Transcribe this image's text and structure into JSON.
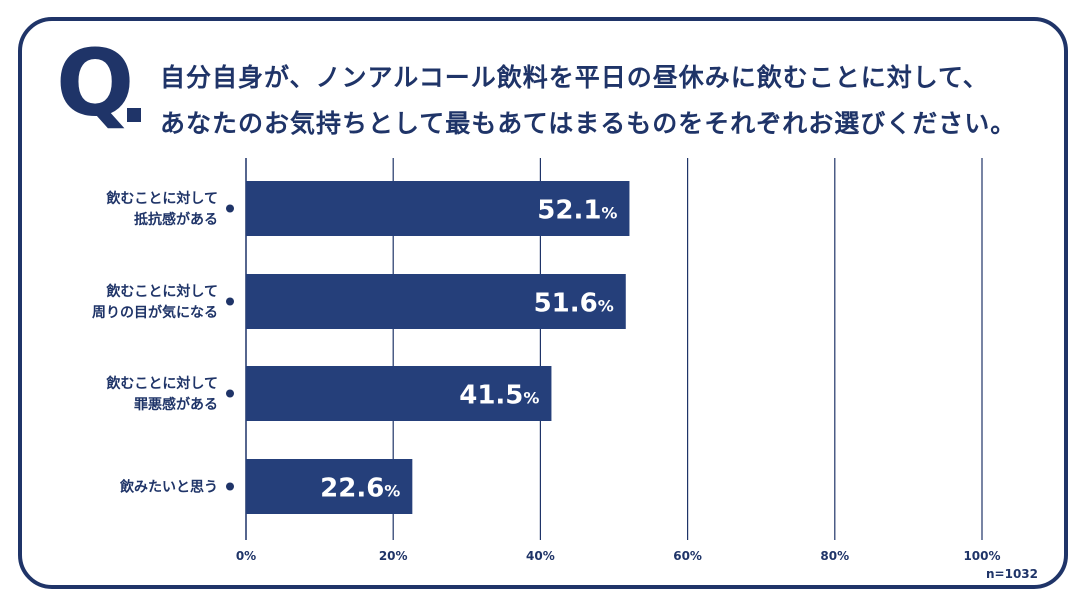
{
  "question": {
    "mark": "Q",
    "line1": "自分自身が、ノンアルコール飲料を平日の昼休みに飲むことに対して、",
    "line2": "あなたのお気持ちとして最もあてはまるものをそれぞれお選びください。"
  },
  "sample_note": "n=1032",
  "colors": {
    "bar": "#253f7a",
    "frame": "#1f3468",
    "grid": "#1f3468",
    "text": "#1f3468"
  },
  "chart_data": {
    "type": "bar",
    "orientation": "horizontal",
    "categories": [
      [
        "飲むことに対して",
        "抵抗感がある"
      ],
      [
        "飲むことに対して",
        "周りの目が気になる"
      ],
      [
        "飲むことに対して",
        "罪悪感がある"
      ],
      [
        "飲みたいと思う"
      ]
    ],
    "values": [
      52.1,
      51.6,
      41.5,
      22.6
    ],
    "value_suffix": "%",
    "xlim": [
      0,
      100
    ],
    "xticks": [
      0,
      20,
      40,
      60,
      80,
      100
    ],
    "xtick_labels": [
      "0%",
      "20%",
      "40%",
      "60%",
      "80%",
      "100%"
    ],
    "grid": true
  }
}
